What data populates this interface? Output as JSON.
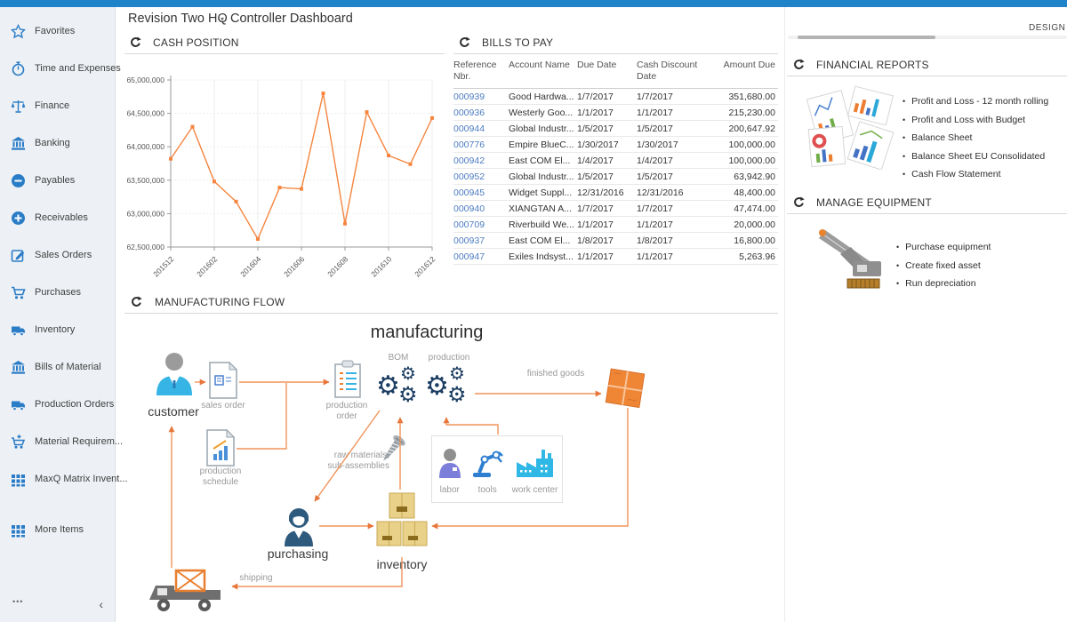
{
  "app": {
    "design_label": "DESIGN"
  },
  "colors": {
    "accent_blue": "#1f83ca",
    "sidebar_icon_blue": "#2a7cc7",
    "link_blue": "#4d7cc0",
    "chart_line_orange": "#f5853f",
    "flow_arrow_orange": "#f0945a",
    "gear_navy": "#1c3e63"
  },
  "header": {
    "company": "Revision Two HQ",
    "caret": "▾",
    "page_title": "Controller Dashboard"
  },
  "sidebar": {
    "items": [
      {
        "icon": "star-icon",
        "label": "Favorites"
      },
      {
        "icon": "stopwatch-icon",
        "label": "Time and Expenses"
      },
      {
        "icon": "scales-icon",
        "label": "Finance"
      },
      {
        "icon": "bank-icon",
        "label": "Banking"
      },
      {
        "icon": "minus-circle-icon",
        "label": "Payables"
      },
      {
        "icon": "plus-circle-icon",
        "label": "Receivables"
      },
      {
        "icon": "edit-icon",
        "label": "Sales Orders"
      },
      {
        "icon": "cart-icon",
        "label": "Purchases"
      },
      {
        "icon": "truck-icon",
        "label": "Inventory"
      },
      {
        "icon": "bank-icon",
        "label": "Bills of Material"
      },
      {
        "icon": "truck-icon",
        "label": "Production Orders"
      },
      {
        "icon": "cart-plus-icon",
        "label": "Material Requirem..."
      },
      {
        "icon": "grid-icon",
        "label": "MaxQ Matrix Invent..."
      },
      {
        "icon": "grid-icon",
        "label": "More Items",
        "gap_before": true
      }
    ],
    "footer": {
      "more": "•••",
      "collapse": "‹"
    }
  },
  "widgets": {
    "cash_position": {
      "title": "CASH POSITION"
    },
    "bills_to_pay": {
      "title": "BILLS TO PAY",
      "columns": [
        "Reference Nbr.",
        "Account Name",
        "Due Date",
        "Cash Discount Date",
        "Amount Due"
      ],
      "rows": [
        [
          "000939",
          "Good Hardwa...",
          "1/7/2017",
          "1/7/2017",
          "351,680.00"
        ],
        [
          "000936",
          "Westerly Goo...",
          "1/1/2017",
          "1/1/2017",
          "215,230.00"
        ],
        [
          "000944",
          "Global Industr...",
          "1/5/2017",
          "1/5/2017",
          "200,647.92"
        ],
        [
          "000776",
          "Empire BlueC...",
          "1/30/2017",
          "1/30/2017",
          "100,000.00"
        ],
        [
          "000942",
          "East COM El...",
          "1/4/2017",
          "1/4/2017",
          "100,000.00"
        ],
        [
          "000952",
          "Global Industr...",
          "1/5/2017",
          "1/5/2017",
          "63,942.90"
        ],
        [
          "000945",
          "Widget Suppl...",
          "12/31/2016",
          "12/31/2016",
          "48,400.00"
        ],
        [
          "000940",
          "XIANGTAN A...",
          "1/7/2017",
          "1/7/2017",
          "47,474.00"
        ],
        [
          "000709",
          "Riverbuild We...",
          "1/1/2017",
          "1/1/2017",
          "20,000.00"
        ],
        [
          "000937",
          "East COM El...",
          "1/8/2017",
          "1/8/2017",
          "16,800.00"
        ],
        [
          "000947",
          "Exiles Indsyst...",
          "1/1/2017",
          "1/1/2017",
          "5,263.96"
        ]
      ]
    },
    "financial_reports": {
      "title": "FINANCIAL REPORTS",
      "links": [
        "Profit and Loss - 12 month rolling",
        "Profit and Loss with Budget",
        "Balance Sheet",
        "Balance Sheet EU Consolidated",
        "Cash Flow Statement"
      ]
    },
    "manage_equipment": {
      "title": "MANAGE EQUIPMENT",
      "links": [
        "Purchase equipment",
        "Create fixed asset",
        "Run depreciation"
      ]
    },
    "manufacturing_flow": {
      "title": "MANUFACTURING FLOW",
      "labels": {
        "heading": "manufacturing",
        "bom": "BOM",
        "production": "production",
        "customer": "customer",
        "sales_order": "sales order",
        "production_schedule": "production schedule",
        "production_order": "production order",
        "raw_materials": "raw materials, sub-assemblies",
        "labor": "labor",
        "tools": "tools",
        "work_center": "work center",
        "finished_goods": "finished goods",
        "inventory": "inventory",
        "purchasing": "purchasing",
        "shipping": "shipping"
      }
    }
  },
  "chart_data": {
    "type": "line",
    "title": "CASH POSITION",
    "x": [
      "201512",
      "201601",
      "201602",
      "201603",
      "201604",
      "201605",
      "201606",
      "201607",
      "201608",
      "201609",
      "201610",
      "201611",
      "201612"
    ],
    "values": [
      63820000,
      64300000,
      63480000,
      63180000,
      62620000,
      63390000,
      63370000,
      64800000,
      62850000,
      64520000,
      63870000,
      63740000,
      64430000
    ],
    "ylim": [
      62500000,
      65000000
    ],
    "y_tick_step": 500000,
    "x_label_every": 2,
    "line_color": "#f5853f",
    "grid": true,
    "legend": "none"
  }
}
